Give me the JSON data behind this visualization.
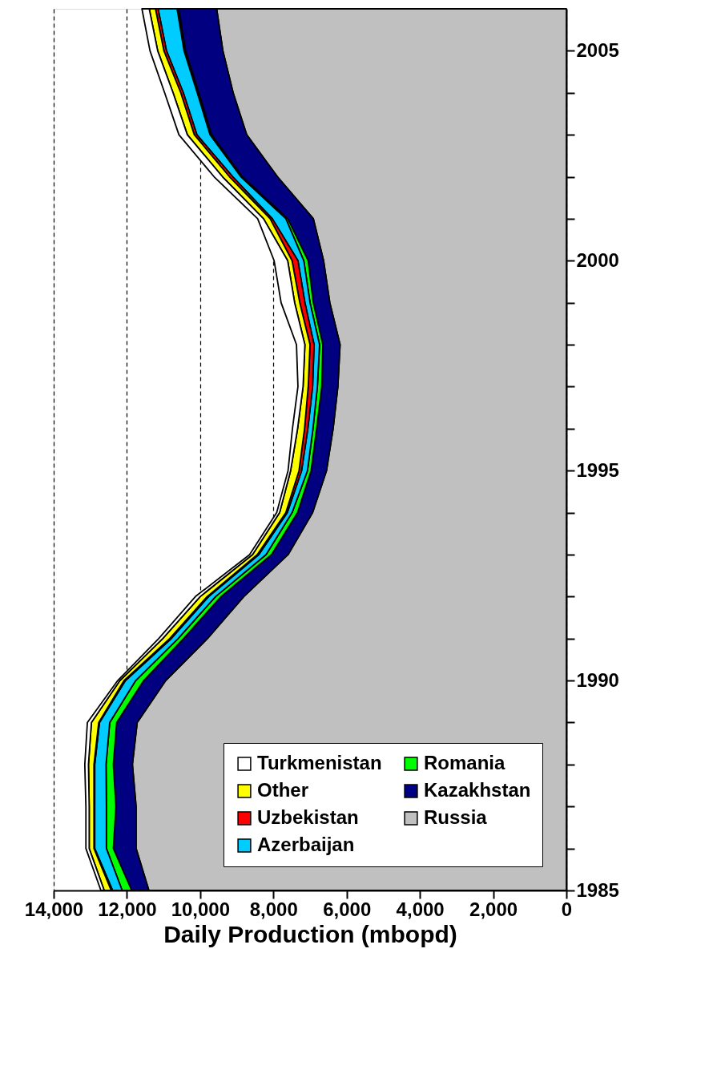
{
  "chart_data": {
    "type": "area",
    "stacked": true,
    "orientation": "horizontal",
    "xlabel": "Daily Production (mbopd)",
    "x": [
      1985,
      1986,
      1987,
      1988,
      1989,
      1990,
      1991,
      1992,
      1993,
      1994,
      1995,
      1996,
      1997,
      1998,
      1999,
      2000,
      2001,
      2002,
      2003,
      2004,
      2005,
      2006
    ],
    "series": [
      {
        "name": "Russia",
        "color": "#c0c0c0",
        "values": [
          11400,
          11750,
          11750,
          11850,
          11720,
          10940,
          9800,
          8810,
          7600,
          6930,
          6550,
          6370,
          6240,
          6180,
          6460,
          6630,
          6910,
          7890,
          8730,
          9100,
          9380,
          9550
        ]
      },
      {
        "name": "Kazakhstan",
        "color": "#000080",
        "values": [
          470,
          620,
          550,
          520,
          560,
          600,
          650,
          620,
          450,
          410,
          420,
          450,
          440,
          470,
          450,
          420,
          700,
          960,
          960,
          940,
          1020,
          1040
        ]
      },
      {
        "name": "Romania",
        "color": "#00ff00",
        "values": [
          260,
          190,
          260,
          200,
          190,
          220,
          150,
          150,
          150,
          150,
          100,
          100,
          120,
          90,
          90,
          120,
          50,
          40,
          40,
          40,
          40,
          40
        ]
      },
      {
        "name": "Azerbaijan",
        "color": "#00ccff",
        "values": [
          260,
          320,
          320,
          310,
          280,
          280,
          190,
          190,
          200,
          130,
          160,
          140,
          130,
          150,
          140,
          160,
          370,
          220,
          360,
          380,
          480,
          520
        ]
      },
      {
        "name": "Uzbekistan",
        "color": "#ff0000",
        "values": [
          40,
          20,
          20,
          20,
          20,
          40,
          40,
          40,
          40,
          40,
          70,
          90,
          120,
          110,
          140,
          160,
          60,
          90,
          70,
          70,
          70,
          70
        ]
      },
      {
        "name": "Other",
        "color": "#ffff00",
        "values": [
          190,
          130,
          130,
          150,
          200,
          110,
          190,
          190,
          130,
          170,
          230,
          190,
          140,
          140,
          140,
          120,
          180,
          190,
          190,
          210,
          170,
          170
        ]
      },
      {
        "name": "Turkmenistan",
        "color": "#ffffff",
        "values": [
          90,
          90,
          90,
          100,
          110,
          60,
          110,
          130,
          80,
          80,
          70,
          140,
          140,
          230,
          370,
          370,
          160,
          230,
          230,
          230,
          210,
          200
        ]
      }
    ],
    "xlim": [
      14000,
      0
    ],
    "xticks": [
      0,
      {
        "value": 2000,
        "label": "2,000"
      },
      {
        "value": 4000,
        "label": "4,000"
      },
      {
        "value": 6000,
        "label": "6,000"
      },
      {
        "value": 8000,
        "label": "8,000"
      },
      {
        "value": 10000,
        "label": "10,000"
      },
      {
        "value": 12000,
        "label": "12,000"
      },
      {
        "value": 14000,
        "label": "14,000"
      }
    ],
    "ylim": [
      1985,
      2006
    ],
    "yticks": [
      1985,
      {
        "value": 1986,
        "label": null
      },
      {
        "value": 1987,
        "label": null
      },
      {
        "value": 1988,
        "label": null
      },
      {
        "value": 1989,
        "label": null
      },
      1990,
      {
        "value": 1991,
        "label": null
      },
      {
        "value": 1992,
        "label": null
      },
      {
        "value": 1993,
        "label": null
      },
      {
        "value": 1994,
        "label": null
      },
      1995,
      {
        "value": 1996,
        "label": null
      },
      {
        "value": 1997,
        "label": null
      },
      {
        "value": 1998,
        "label": null
      },
      {
        "value": 1999,
        "label": null
      },
      2000,
      {
        "value": 2001,
        "label": null
      },
      {
        "value": 2002,
        "label": null
      },
      {
        "value": 2003,
        "label": null
      },
      {
        "value": 2004,
        "label": null
      },
      2005
    ],
    "grid": "x",
    "legend": "bottom right"
  }
}
